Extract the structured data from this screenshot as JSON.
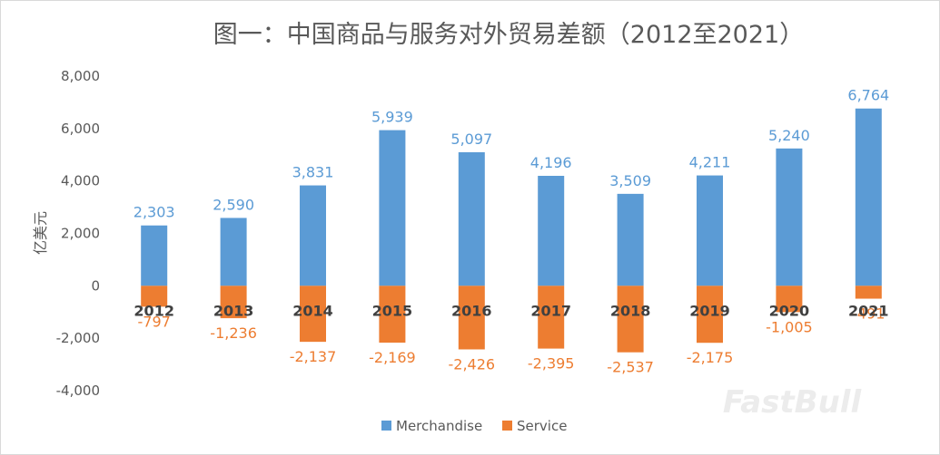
{
  "chart_data": {
    "type": "bar",
    "title": "图一：中国商品与服务对外贸易差额（2012至2021）",
    "ylabel": "亿美元",
    "xlabel": "",
    "ylim": [
      -4000,
      8000
    ],
    "yticks": [
      -4000,
      -2000,
      0,
      2000,
      4000,
      6000,
      8000
    ],
    "ytick_labels": [
      "-4,000",
      "-2,000",
      "0",
      "2,000",
      "4,000",
      "6,000",
      "8,000"
    ],
    "categories": [
      "2012",
      "2013",
      "2014",
      "2015",
      "2016",
      "2017",
      "2018",
      "2019",
      "2020",
      "2021"
    ],
    "series": [
      {
        "name": "Merchandise",
        "color": "#5b9bd5",
        "values": [
          2303,
          2590,
          3831,
          5939,
          5097,
          4196,
          3509,
          4211,
          5240,
          6764
        ],
        "labels": [
          "2,303",
          "2,590",
          "3,831",
          "5,939",
          "5,097",
          "4,196",
          "3,509",
          "4,211",
          "5,240",
          "6,764"
        ]
      },
      {
        "name": "Service",
        "color": "#ed7d31",
        "values": [
          -797,
          -1236,
          -2137,
          -2169,
          -2426,
          -2395,
          -2537,
          -2175,
          -1005,
          -491
        ],
        "labels": [
          "-797",
          "-1,236",
          "-2,137",
          "-2,169",
          "-2,426",
          "-2,395",
          "-2,537",
          "-2,175",
          "-1,005",
          "-491"
        ]
      }
    ],
    "stacked": true,
    "grid": false,
    "legend": "bottom-center",
    "watermark": "FastBull"
  }
}
